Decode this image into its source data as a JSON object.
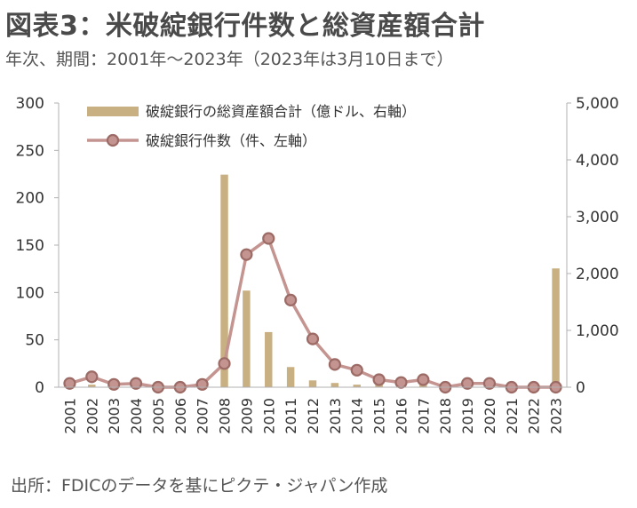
{
  "header": {
    "title": "図表3：米破綻銀行件数と総資産額合計",
    "subtitle": "年次、期間：2001年～2023年（2023年は3月10日まで）"
  },
  "footer": {
    "source": "出所：FDICのデータを基にピクテ・ジャパン作成"
  },
  "chart_data": {
    "type": "bar",
    "categories": [
      "2001",
      "2002",
      "2003",
      "2004",
      "2005",
      "2006",
      "2007",
      "2008",
      "2009",
      "2010",
      "2011",
      "2012",
      "2013",
      "2014",
      "2015",
      "2016",
      "2017",
      "2018",
      "2019",
      "2020",
      "2021",
      "2022",
      "2023"
    ],
    "series": [
      {
        "name": "破綻銀行の総資産額合計（億ドル、右軸）",
        "type": "bar",
        "axis": "right",
        "color": "#c9b083",
        "values": [
          20,
          45,
          10,
          15,
          0,
          0,
          25,
          3740,
          1700,
          970,
          355,
          120,
          75,
          45,
          70,
          5,
          45,
          0,
          5,
          4,
          0,
          0,
          2090
        ]
      },
      {
        "name": "破綻銀行件数（件、左軸）",
        "type": "line",
        "axis": "left",
        "color": "#c49490",
        "marker_color": "#9c6b66",
        "values": [
          4,
          11,
          3,
          4,
          0,
          0,
          3,
          25,
          140,
          157,
          92,
          51,
          24,
          18,
          8,
          5,
          8,
          0,
          4,
          4,
          0,
          0,
          0
        ]
      }
    ],
    "left_axis": {
      "ylim": [
        0,
        300
      ],
      "ticks": [
        "0",
        "50",
        "100",
        "150",
        "200",
        "250",
        "300"
      ]
    },
    "right_axis": {
      "ylim": [
        0,
        5000
      ],
      "ticks": [
        "0",
        "1,000",
        "2,000",
        "3,000",
        "4,000",
        "5,000"
      ]
    },
    "grid": false,
    "legend_position": "top"
  }
}
